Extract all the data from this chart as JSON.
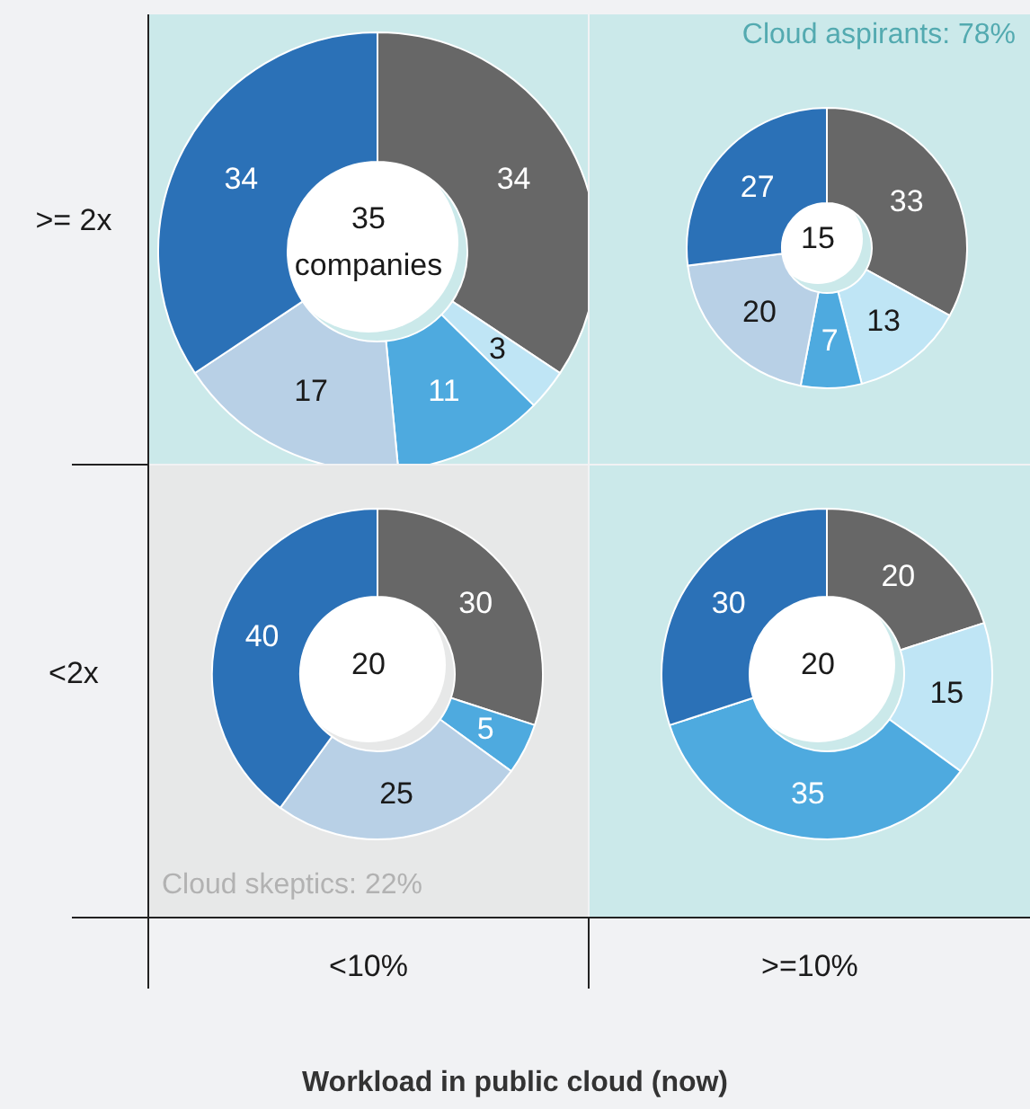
{
  "chart_data": [
    {
      "type": "donut",
      "title": "35 companies",
      "ylabel": ">= 2x",
      "categories": [
        null,
        null,
        null,
        null,
        null
      ],
      "values": [
        34,
        3,
        11,
        17,
        34
      ],
      "colors": [
        "#676767",
        "#bfe5f5",
        "#4eaadf",
        "#b8d0e6",
        "#2b71b7"
      ],
      "data_labels": true
    },
    {
      "type": "donut",
      "title": "15",
      "categories": [
        null,
        null,
        null,
        null,
        null
      ],
      "values": [
        33,
        13,
        7,
        20,
        27
      ],
      "colors": [
        "#676767",
        "#bfe5f5",
        "#4eaadf",
        "#b8d0e6",
        "#2b71b7"
      ],
      "data_labels": true,
      "annotations": [
        "Cloud aspirants: 78%"
      ]
    },
    {
      "type": "donut",
      "title": "20",
      "ylabel": "<2x",
      "xlabel": "<10%",
      "categories": [
        null,
        null,
        null,
        null
      ],
      "values": [
        30,
        5,
        25,
        40
      ],
      "colors": [
        "#676767",
        "#4eaadf",
        "#b8d0e6",
        "#2b71b7"
      ],
      "data_labels": true,
      "annotations": [
        "Cloud skeptics: 22%",
        "Workload in public cloud (now)"
      ]
    },
    {
      "type": "donut",
      "title": "20",
      "xlabel": ">=10%",
      "categories": [
        null,
        null,
        null,
        null
      ],
      "values": [
        20,
        15,
        35,
        30
      ],
      "colors": [
        "#676767",
        "#bfe5f5",
        "#4eaadf",
        "#2b71b7"
      ],
      "data_labels": true
    }
  ]
}
